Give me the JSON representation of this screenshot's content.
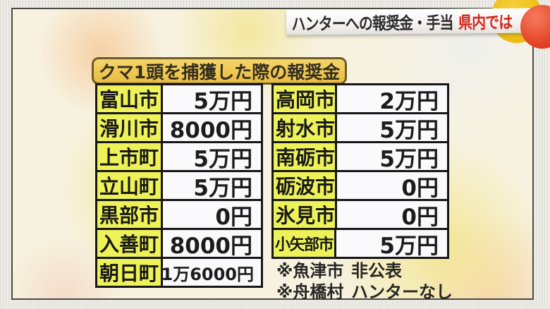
{
  "header": {
    "topic_label": "ハンターへの報奨金・手当",
    "highlight_label": "県内では"
  },
  "title": "クマ1頭を捕獲した際の報奨金",
  "table_left": {
    "rows": [
      {
        "name": "富山市",
        "value": "5万円"
      },
      {
        "name": "滑川市",
        "value": "8000円"
      },
      {
        "name": "上市町",
        "value": "5万円"
      },
      {
        "name": "立山町",
        "value": "5万円"
      },
      {
        "name": "黒部市",
        "value": "0円"
      },
      {
        "name": "入善町",
        "value": "8000円"
      },
      {
        "name": "朝日町",
        "value": "1万6000円"
      }
    ]
  },
  "table_right": {
    "rows": [
      {
        "name": "高岡市",
        "value": "2万円"
      },
      {
        "name": "射水市",
        "value": "5万円"
      },
      {
        "name": "南砺市",
        "value": "5万円"
      },
      {
        "name": "砺波市",
        "value": "0円"
      },
      {
        "name": "氷見市",
        "value": "0円"
      },
      {
        "name": "小矢部市",
        "value": "5万円"
      }
    ]
  },
  "notes": [
    {
      "name": "※魚津市",
      "value": "非公表"
    },
    {
      "name": "※舟橋村",
      "value": "ハンターなし"
    }
  ],
  "colors": {
    "cell_yellow": "#eef259",
    "cell_white": "#fafafc",
    "border_black": "#161616",
    "badge_gold": "#e9bd41",
    "highlight_red": "#d5261b",
    "ball_red": "#e23c1d",
    "circle_yellow": "#edb90d",
    "panel_cream": "#f7f2e0"
  }
}
